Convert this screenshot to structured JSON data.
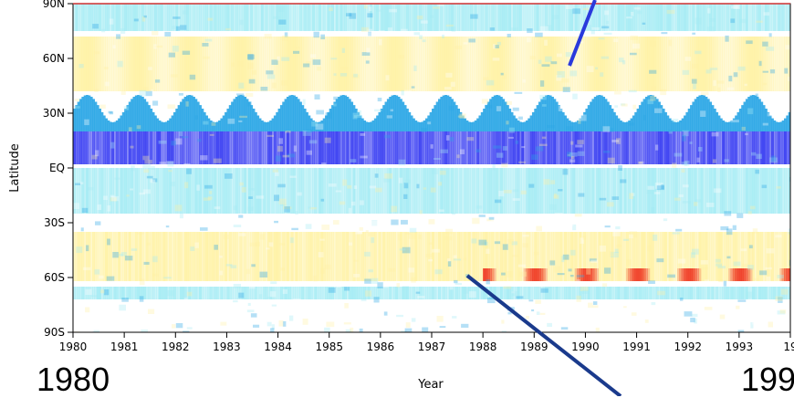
{
  "chart_data": {
    "type": "heatmap",
    "xlabel": "Year",
    "ylabel": "Latitude",
    "x_ticks": [
      "1980",
      "1981",
      "1982",
      "1983",
      "1984",
      "1985",
      "1986",
      "1987",
      "1988",
      "1989",
      "1990",
      "1991",
      "1992",
      "1993",
      "19"
    ],
    "y_ticks": [
      "90N",
      "60N",
      "30N",
      "EQ",
      "30S",
      "60S",
      "90S"
    ],
    "y_tick_values": [
      90,
      60,
      30,
      0,
      -30,
      -60,
      -90
    ],
    "xlim": [
      1980,
      1994
    ],
    "ylim": [
      -90,
      90
    ],
    "colors": {
      "strong_negative": "#3a3ff2",
      "negative": "#2aa6e6",
      "weak_negative": "#a6ecf4",
      "neutral": "#ffffff",
      "weak_positive": "#fff2a6",
      "positive": "#ffd24a",
      "strong_positive": "#f0402a",
      "arrow_light": "#2a3adc",
      "arrow_dark": "#1a3a8c"
    },
    "bands": [
      {
        "lat_top": 90,
        "lat_bottom": 75,
        "level": "weak_negative"
      },
      {
        "lat_top": 72,
        "lat_bottom": 42,
        "level": "weak_positive",
        "seasonal": true
      },
      {
        "lat_top": 40,
        "lat_bottom": 20,
        "level": "negative",
        "seasonal": true
      },
      {
        "lat_top": 20,
        "lat_bottom": 2,
        "level": "strong_negative"
      },
      {
        "lat_top": 0,
        "lat_bottom": -25,
        "level": "weak_negative"
      },
      {
        "lat_top": -35,
        "lat_bottom": -62,
        "level": "weak_positive"
      },
      {
        "lat_top": -55,
        "lat_bottom": -62,
        "level": "strong_positive",
        "from_year": 1988
      },
      {
        "lat_top": -65,
        "lat_bottom": -72,
        "level": "weak_negative"
      }
    ]
  },
  "annotations": {
    "start_year": "1980",
    "end_year": "199"
  }
}
